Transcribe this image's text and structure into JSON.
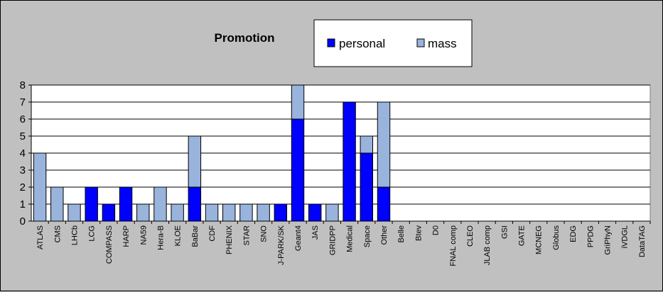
{
  "chart_data": {
    "type": "bar",
    "stacked": true,
    "title": "Promotion",
    "xlabel": "",
    "ylabel": "",
    "ylim": [
      0,
      8
    ],
    "yticks": [
      0,
      1,
      2,
      3,
      4,
      5,
      6,
      7,
      8
    ],
    "grid": true,
    "legend_position": "top",
    "categories": [
      "ATLAS",
      "CMS",
      "LHCb",
      "LCG",
      "COMPASS",
      "HARP",
      "NA59",
      "Hera-B",
      "KLOE",
      "BaBar",
      "CDF",
      "PHENIX",
      "STAR",
      "SNO",
      "J-PARK/SK",
      "Geant4",
      "JAS",
      "GRIDPP",
      "Medical",
      "Space",
      "Other",
      "Belle",
      "Btev",
      "D0",
      "FNAL comp",
      "CLEO",
      "JLAB comp",
      "GSI",
      "GATE",
      "MCNEG",
      "Globus",
      "EDG",
      "PPDG",
      "GriPhyN",
      "iVDGL",
      "DataTAG"
    ],
    "series": [
      {
        "name": "personal",
        "color": "#0000ff",
        "values": [
          0,
          0,
          0,
          2,
          1,
          2,
          0,
          0,
          0,
          2,
          0,
          0,
          0,
          0,
          1,
          6,
          1,
          0,
          7,
          4,
          2,
          0,
          0,
          0,
          0,
          0,
          0,
          0,
          0,
          0,
          0,
          0,
          0,
          0,
          0,
          0
        ]
      },
      {
        "name": "mass",
        "color": "#99b8e0",
        "values": [
          4,
          2,
          1,
          0,
          0,
          0,
          1,
          2,
          1,
          3,
          1,
          1,
          1,
          1,
          0,
          2,
          0,
          1,
          0,
          1,
          5,
          0,
          0,
          0,
          0,
          0,
          0,
          0,
          0,
          0,
          0,
          0,
          0,
          0,
          0,
          0
        ]
      }
    ]
  }
}
